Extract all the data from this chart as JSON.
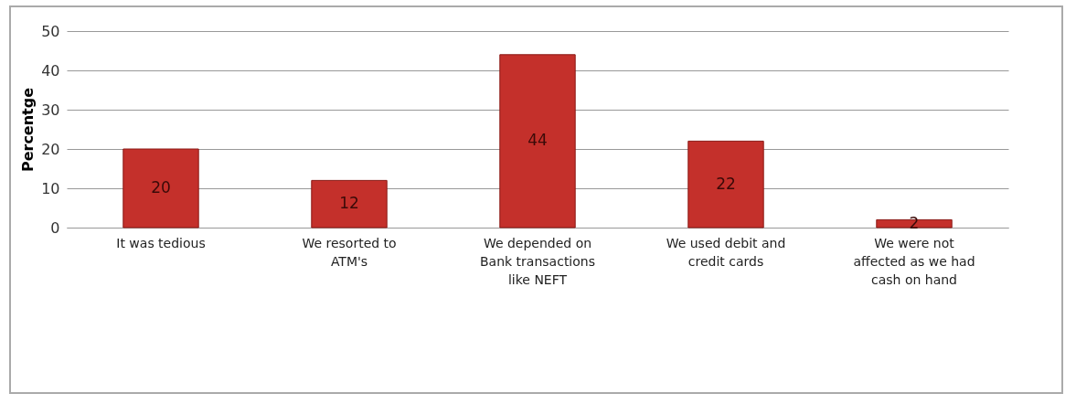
{
  "chart_data": {
    "type": "bar",
    "ylabel": "Percentge",
    "categories": [
      "It was tedious",
      "We resorted to ATM's",
      "We depended on Bank transactions like NEFT",
      "We used debit and credit cards",
      "We were not affected as we had cash on hand"
    ],
    "values": [
      20,
      12,
      44,
      22,
      2
    ],
    "color": "#c4302b",
    "ylim": [
      0,
      50
    ],
    "yticks": [
      0,
      10,
      20,
      30,
      40,
      50
    ],
    "grid": "y",
    "data_labels": true
  }
}
